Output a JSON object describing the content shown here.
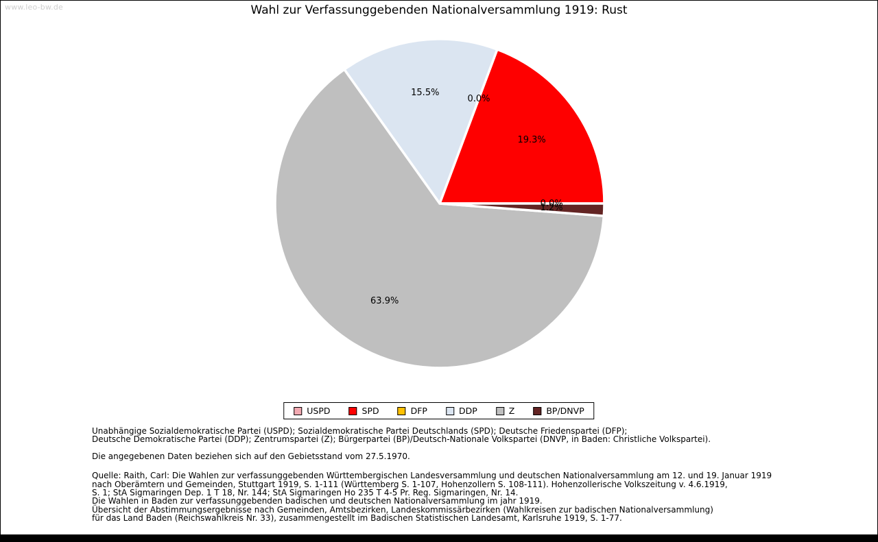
{
  "watermark": "www.leo-bw.de",
  "title": "Wahl zur Verfassunggebenden Nationalversammlung 1919: Rust",
  "chart_data": {
    "type": "pie",
    "title": "Wahl zur Verfassunggebenden Nationalversammlung 1919: Rust",
    "values_are_percent": true,
    "startangle_deg": 0,
    "counterclockwise": true,
    "legend_position": "bottom",
    "series": [
      {
        "name": "USPD",
        "value": 0.0,
        "label": "0.0%",
        "color": "#f2a9b1"
      },
      {
        "name": "SPD",
        "value": 19.3,
        "label": "19.3%",
        "color": "#fe0000"
      },
      {
        "name": "DFP",
        "value": 0.0,
        "label": "0.0%",
        "color": "#ffc000"
      },
      {
        "name": "DDP",
        "value": 15.5,
        "label": "15.5%",
        "color": "#dbe5f1"
      },
      {
        "name": "Z",
        "value": 63.9,
        "label": "63.9%",
        "color": "#bfbfbf"
      },
      {
        "name": "BP/DNVP",
        "value": 1.2,
        "label": "1.2%",
        "color": "#632423"
      }
    ]
  },
  "footer": {
    "party_abbreviations": [
      "Unabhängige Sozialdemokratische Partei (USPD); Sozialdemokratische Partei Deutschlands (SPD); Deutsche Friedenspartei (DFP);",
      "Deutsche Demokratische Partei (DDP); Zentrumspartei (Z); Bürgerpartei (BP)/Deutsch-Nationale Volkspartei (DNVP, in Baden: Christliche Volkspartei)."
    ],
    "data_note": "Die angegebenen Daten beziehen sich auf den Gebietsstand vom 27.5.1970.",
    "source": [
      "Quelle: Raith, Carl: Die Wahlen zur verfassunggebenden Württembergischen Landesversammlung und deutschen Nationalversammlung am 12. und 19. Januar 1919",
      "nach Oberämtern und Gemeinden, Stuttgart 1919, S. 1-111 (Württemberg S. 1-107, Hohenzollern S. 108-111). Hohenzollerische Volkszeitung v. 4.6.1919,",
      "S. 1; StA Sigmaringen Dep. 1 T 18, Nr. 144; StA Sigmaringen Ho 235 T 4-5 Pr. Reg. Sigmaringen, Nr. 14.",
      "Die Wahlen in Baden zur verfassunggebenden badischen und deutschen Nationalversammlung im jahr 1919.",
      "Übersicht der Abstimmungsergebnisse nach Gemeinden, Amtsbezirken, Landeskommissärbezirken (Wahlkreisen zur badischen Nationalversammlung)",
      "für das Land Baden (Reichswahlkreis Nr. 33), zusammengestellt im Badischen Statistischen Landesamt, Karlsruhe 1919, S. 1-77."
    ]
  }
}
